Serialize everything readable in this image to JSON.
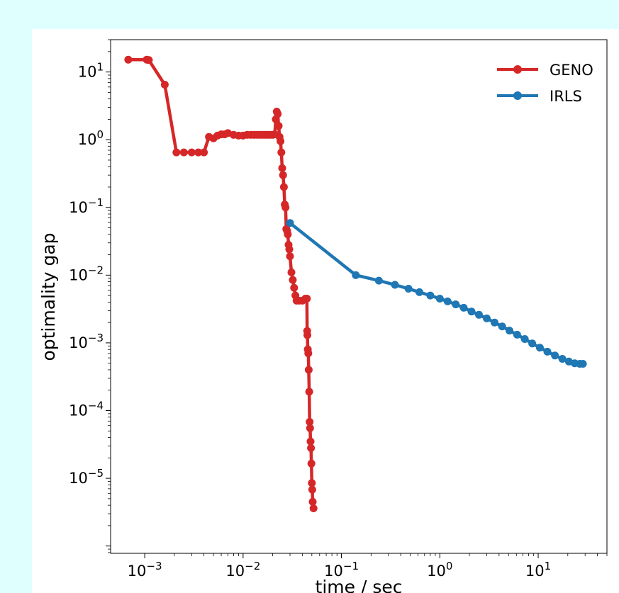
{
  "chart_data": {
    "type": "line",
    "xscale": "log",
    "yscale": "log",
    "xlim": [
      0.00045,
      50
    ],
    "ylim": [
      7.8e-07,
      30
    ],
    "xlabel": "time / sec",
    "ylabel": "optimality gap",
    "grid": false,
    "legend_position": "top-right",
    "x_ticks": [
      {
        "value": 0.001,
        "base": "10",
        "exp": "−3"
      },
      {
        "value": 0.01,
        "base": "10",
        "exp": "−2"
      },
      {
        "value": 0.1,
        "base": "10",
        "exp": "−1"
      },
      {
        "value": 1,
        "base": "10",
        "exp": "0"
      },
      {
        "value": 10,
        "base": "10",
        "exp": "1"
      }
    ],
    "y_ticks": [
      {
        "value": 10,
        "base": "10",
        "exp": "1"
      },
      {
        "value": 1,
        "base": "10",
        "exp": "0"
      },
      {
        "value": 0.1,
        "base": "10",
        "exp": "−1"
      },
      {
        "value": 0.01,
        "base": "10",
        "exp": "−2"
      },
      {
        "value": 0.001,
        "base": "10",
        "exp": "−3"
      },
      {
        "value": 0.0001,
        "base": "10",
        "exp": "−4"
      },
      {
        "value": 1e-05,
        "base": "10",
        "exp": "−5"
      }
    ],
    "series": [
      {
        "name": "GENO",
        "color": "#d62728",
        "points": [
          [
            0.00068,
            15.2
          ],
          [
            0.00105,
            15.2
          ],
          [
            0.0011,
            15.0
          ],
          [
            0.0016,
            6.5
          ],
          [
            0.0021,
            0.65
          ],
          [
            0.0025,
            0.65
          ],
          [
            0.003,
            0.65
          ],
          [
            0.0035,
            0.65
          ],
          [
            0.004,
            0.65
          ],
          [
            0.0045,
            1.1
          ],
          [
            0.005,
            1.05
          ],
          [
            0.0055,
            1.15
          ],
          [
            0.006,
            1.2
          ],
          [
            0.0065,
            1.2
          ],
          [
            0.007,
            1.25
          ],
          [
            0.008,
            1.18
          ],
          [
            0.009,
            1.15
          ],
          [
            0.01,
            1.15
          ],
          [
            0.011,
            1.18
          ],
          [
            0.012,
            1.18
          ],
          [
            0.013,
            1.18
          ],
          [
            0.014,
            1.18
          ],
          [
            0.015,
            1.18
          ],
          [
            0.016,
            1.18
          ],
          [
            0.017,
            1.18
          ],
          [
            0.018,
            1.18
          ],
          [
            0.019,
            1.18
          ],
          [
            0.02,
            1.18
          ],
          [
            0.021,
            1.2
          ],
          [
            0.0215,
            2.0
          ],
          [
            0.022,
            2.6
          ],
          [
            0.0225,
            2.4
          ],
          [
            0.023,
            1.6
          ],
          [
            0.0235,
            1.1
          ],
          [
            0.024,
            0.95
          ],
          [
            0.0245,
            0.65
          ],
          [
            0.025,
            0.38
          ],
          [
            0.0255,
            0.3
          ],
          [
            0.026,
            0.2
          ],
          [
            0.0265,
            0.11
          ],
          [
            0.027,
            0.1
          ],
          [
            0.0275,
            0.048
          ],
          [
            0.028,
            0.045
          ],
          [
            0.0285,
            0.04
          ],
          [
            0.029,
            0.028
          ],
          [
            0.0295,
            0.024
          ],
          [
            0.03,
            0.019
          ],
          [
            0.031,
            0.011
          ],
          [
            0.032,
            0.0085
          ],
          [
            0.033,
            0.0065
          ],
          [
            0.034,
            0.005
          ],
          [
            0.035,
            0.0042
          ],
          [
            0.037,
            0.0042
          ],
          [
            0.04,
            0.0042
          ],
          [
            0.043,
            0.0045
          ],
          [
            0.0445,
            0.0045
          ],
          [
            0.0448,
            0.0015
          ],
          [
            0.045,
            0.0013
          ],
          [
            0.0455,
            0.0008
          ],
          [
            0.046,
            0.0007
          ],
          [
            0.0465,
            0.0004
          ],
          [
            0.047,
            0.00019
          ],
          [
            0.0475,
            6.8e-05
          ],
          [
            0.048,
            5.5e-05
          ],
          [
            0.0485,
            3.5e-05
          ],
          [
            0.049,
            2.8e-05
          ],
          [
            0.0495,
            1.65e-05
          ],
          [
            0.05,
            8.5e-06
          ],
          [
            0.0505,
            6.8e-06
          ],
          [
            0.051,
            4.5e-06
          ],
          [
            0.052,
            3.6e-06
          ]
        ]
      },
      {
        "name": "IRLS",
        "color": "#1f77b4",
        "points": [
          [
            0.03,
            0.059
          ],
          [
            0.14,
            0.01
          ],
          [
            0.24,
            0.0083
          ],
          [
            0.35,
            0.0072
          ],
          [
            0.48,
            0.0063
          ],
          [
            0.62,
            0.0056
          ],
          [
            0.8,
            0.005
          ],
          [
            1.0,
            0.0045
          ],
          [
            1.2,
            0.0041
          ],
          [
            1.45,
            0.0037
          ],
          [
            1.75,
            0.0033
          ],
          [
            2.1,
            0.0029
          ],
          [
            2.5,
            0.0026
          ],
          [
            3.0,
            0.0023
          ],
          [
            3.6,
            0.002
          ],
          [
            4.3,
            0.00175
          ],
          [
            5.1,
            0.00152
          ],
          [
            6.1,
            0.00132
          ],
          [
            7.3,
            0.00114
          ],
          [
            8.7,
            0.00098
          ],
          [
            10.4,
            0.00085
          ],
          [
            12.4,
            0.00074
          ],
          [
            14.8,
            0.00065
          ],
          [
            17.6,
            0.00058
          ],
          [
            20.5,
            0.00053
          ],
          [
            23.5,
            0.0005
          ],
          [
            26.5,
            0.00049
          ],
          [
            28.5,
            0.00049
          ]
        ]
      }
    ]
  }
}
